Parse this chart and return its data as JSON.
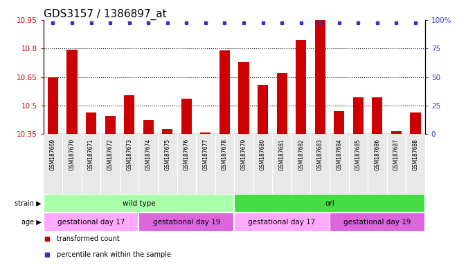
{
  "title": "GDS3157 / 1386897_at",
  "samples": [
    "GSM187669",
    "GSM187670",
    "GSM187671",
    "GSM187672",
    "GSM187673",
    "GSM187674",
    "GSM187675",
    "GSM187676",
    "GSM187677",
    "GSM187678",
    "GSM187679",
    "GSM187680",
    "GSM187681",
    "GSM187682",
    "GSM187683",
    "GSM187684",
    "GSM187685",
    "GSM187686",
    "GSM187687",
    "GSM187688"
  ],
  "values": [
    10.65,
    10.795,
    10.465,
    10.445,
    10.555,
    10.425,
    10.375,
    10.535,
    10.36,
    10.79,
    10.73,
    10.61,
    10.67,
    10.845,
    10.955,
    10.47,
    10.545,
    10.545,
    10.365,
    10.465
  ],
  "bar_color": "#cc0000",
  "dot_color": "#3333cc",
  "ymin": 10.35,
  "ymax": 10.95,
  "yticks": [
    10.35,
    10.5,
    10.65,
    10.8,
    10.95
  ],
  "ytick_labels": [
    "10.35",
    "10.5",
    "10.65",
    "10.8",
    "10.95"
  ],
  "right_yticks": [
    0,
    25,
    50,
    75,
    100
  ],
  "right_ytick_labels": [
    "0",
    "25",
    "50",
    "75",
    "100%"
  ],
  "dotted_lines": [
    10.5,
    10.65,
    10.8
  ],
  "strain_groups": [
    {
      "label": "wild type",
      "start": 0,
      "end": 10,
      "color": "#aaffaa"
    },
    {
      "label": "orl",
      "start": 10,
      "end": 20,
      "color": "#44dd44"
    }
  ],
  "age_groups": [
    {
      "label": "gestational day 17",
      "start": 0,
      "end": 5,
      "color": "#ffaaff"
    },
    {
      "label": "gestational day 19",
      "start": 5,
      "end": 10,
      "color": "#dd66dd"
    },
    {
      "label": "gestational day 17",
      "start": 10,
      "end": 15,
      "color": "#ffaaff"
    },
    {
      "label": "gestational day 19",
      "start": 15,
      "end": 20,
      "color": "#dd66dd"
    }
  ],
  "tick_label_color_left": "#cc0000",
  "tick_label_color_right": "#3333cc",
  "title_fontsize": 11,
  "bar_width": 0.55
}
